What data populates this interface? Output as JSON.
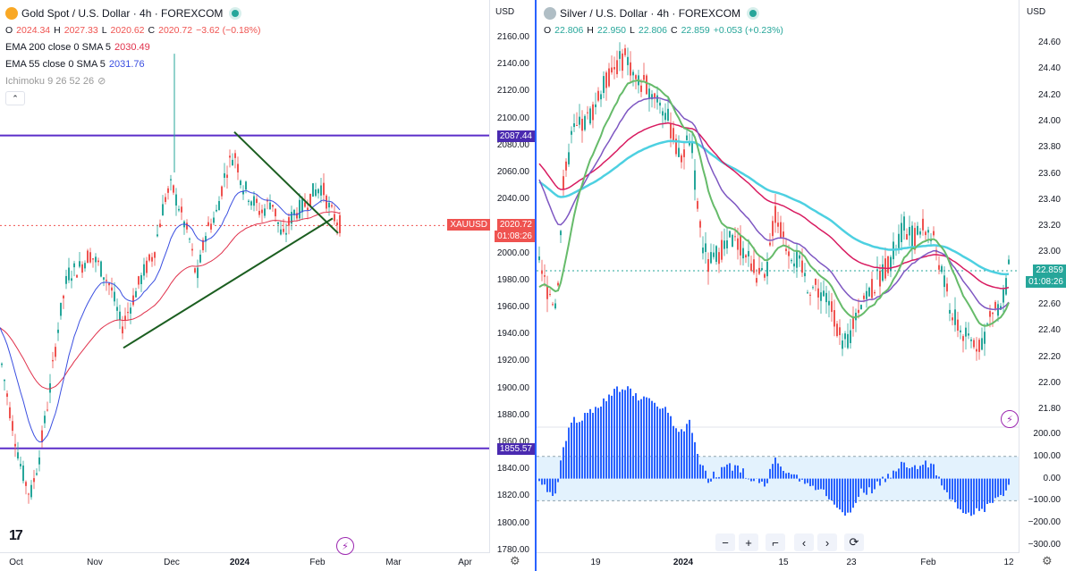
{
  "left": {
    "title": "Gold Spot / U.S. Dollar · 4h · FOREXCOM",
    "ohlc": {
      "o": "2024.34",
      "h": "2027.33",
      "l": "2020.62",
      "c": "2020.72",
      "chg": "−3.62 (−0.18%)"
    },
    "ema200": {
      "label": "EMA 200 close 0 SMA 5",
      "value": "2030.49"
    },
    "ema55": {
      "label": "EMA 55 close 0 SMA 5",
      "value": "2031.76"
    },
    "ichimoku": {
      "label": "Ichimoku 9 26 52 26"
    },
    "unit": "USD",
    "price_ticks": [
      "2160.00",
      "2140.00",
      "2120.00",
      "2100.00",
      "2080.00",
      "2060.00",
      "2040.00",
      "2020.00",
      "2000.00",
      "1980.00",
      "1960.00",
      "1940.00",
      "1920.00",
      "1900.00",
      "1880.00",
      "1860.00",
      "1840.00",
      "1820.00",
      "1800.00",
      "1780.00"
    ],
    "hline_upper": "2087.44",
    "hline_lower": "1855.57",
    "symbol_tag": "XAUUSD",
    "last_price": "2020.72",
    "countdown": "01:08:26",
    "x_ticks": [
      "Oct",
      "Nov",
      "Dec",
      "2024",
      "Feb",
      "Mar",
      "Apr"
    ],
    "logo": "17"
  },
  "right": {
    "title": "Silver / U.S. Dollar · 4h · FOREXCOM",
    "ohlc": {
      "o": "22.806",
      "h": "22.950",
      "l": "22.806",
      "c": "22.859",
      "chg": "+0.053 (+0.23%)"
    },
    "unit": "USD",
    "price_ticks": [
      "24.60",
      "24.40",
      "24.20",
      "24.00",
      "23.80",
      "23.60",
      "23.40",
      "23.20",
      "23.00",
      "22.80",
      "22.60",
      "22.40",
      "22.20",
      "22.00",
      "21.80"
    ],
    "last_price": "22.859",
    "countdown": "01:08:26",
    "osc_ticks": [
      "200.00",
      "100.00",
      "0.00",
      "−100.00",
      "−200.00",
      "−300.00"
    ],
    "x_ticks": [
      "19",
      "2024",
      "15",
      "23",
      "Feb",
      "12"
    ],
    "nav": [
      "−",
      "+",
      "⌐",
      "‹",
      "›",
      "⟳"
    ]
  },
  "colors": {
    "up": "#26a69a",
    "down": "#ef5350",
    "hline": "#5b2ec9",
    "ema200": "#e0314b",
    "ema55": "#3a4ee0",
    "trend": "#1b5e20",
    "cyan": "#4dd0e1",
    "green": "#66bb6a",
    "purple": "#7e57c2",
    "osc": "#2962ff"
  }
}
